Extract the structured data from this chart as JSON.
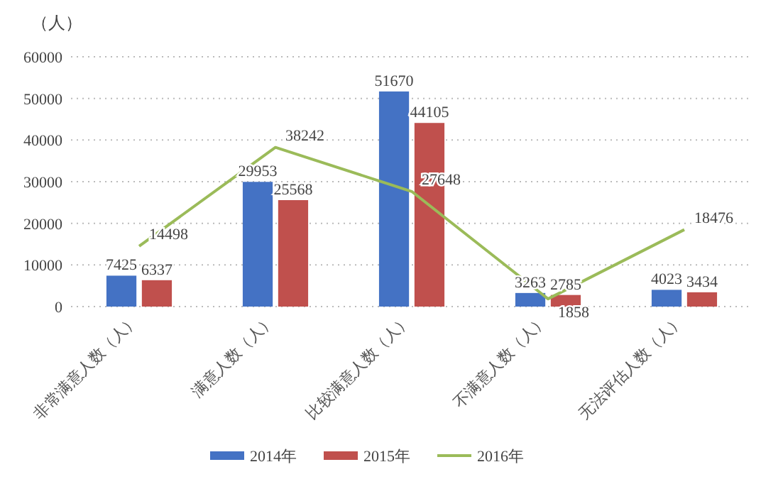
{
  "chart_data": {
    "type": "bar",
    "ylabel": "（人）",
    "categories": [
      "非常满意人数（人）",
      "满意人数（人）",
      "比较满意人数（人）",
      "不满意人数（人）",
      "无法评估人数（人）"
    ],
    "series": [
      {
        "name": "2014年",
        "color": "#4472c4",
        "values": [
          7425,
          29953,
          51670,
          3263,
          4023
        ]
      },
      {
        "name": "2015年",
        "color": "#c0504d",
        "values": [
          6337,
          25568,
          44105,
          2785,
          3434
        ]
      },
      {
        "name": "2016年",
        "type": "line",
        "color": "#9bbb59",
        "values": [
          14498,
          38242,
          27648,
          1858,
          18476
        ]
      }
    ],
    "ylim": [
      0,
      60000
    ],
    "yticks": [
      0,
      10000,
      20000,
      30000,
      40000,
      50000,
      60000
    ],
    "grid": "y",
    "legend": "bottom",
    "data_labels": true,
    "marker": "none"
  }
}
